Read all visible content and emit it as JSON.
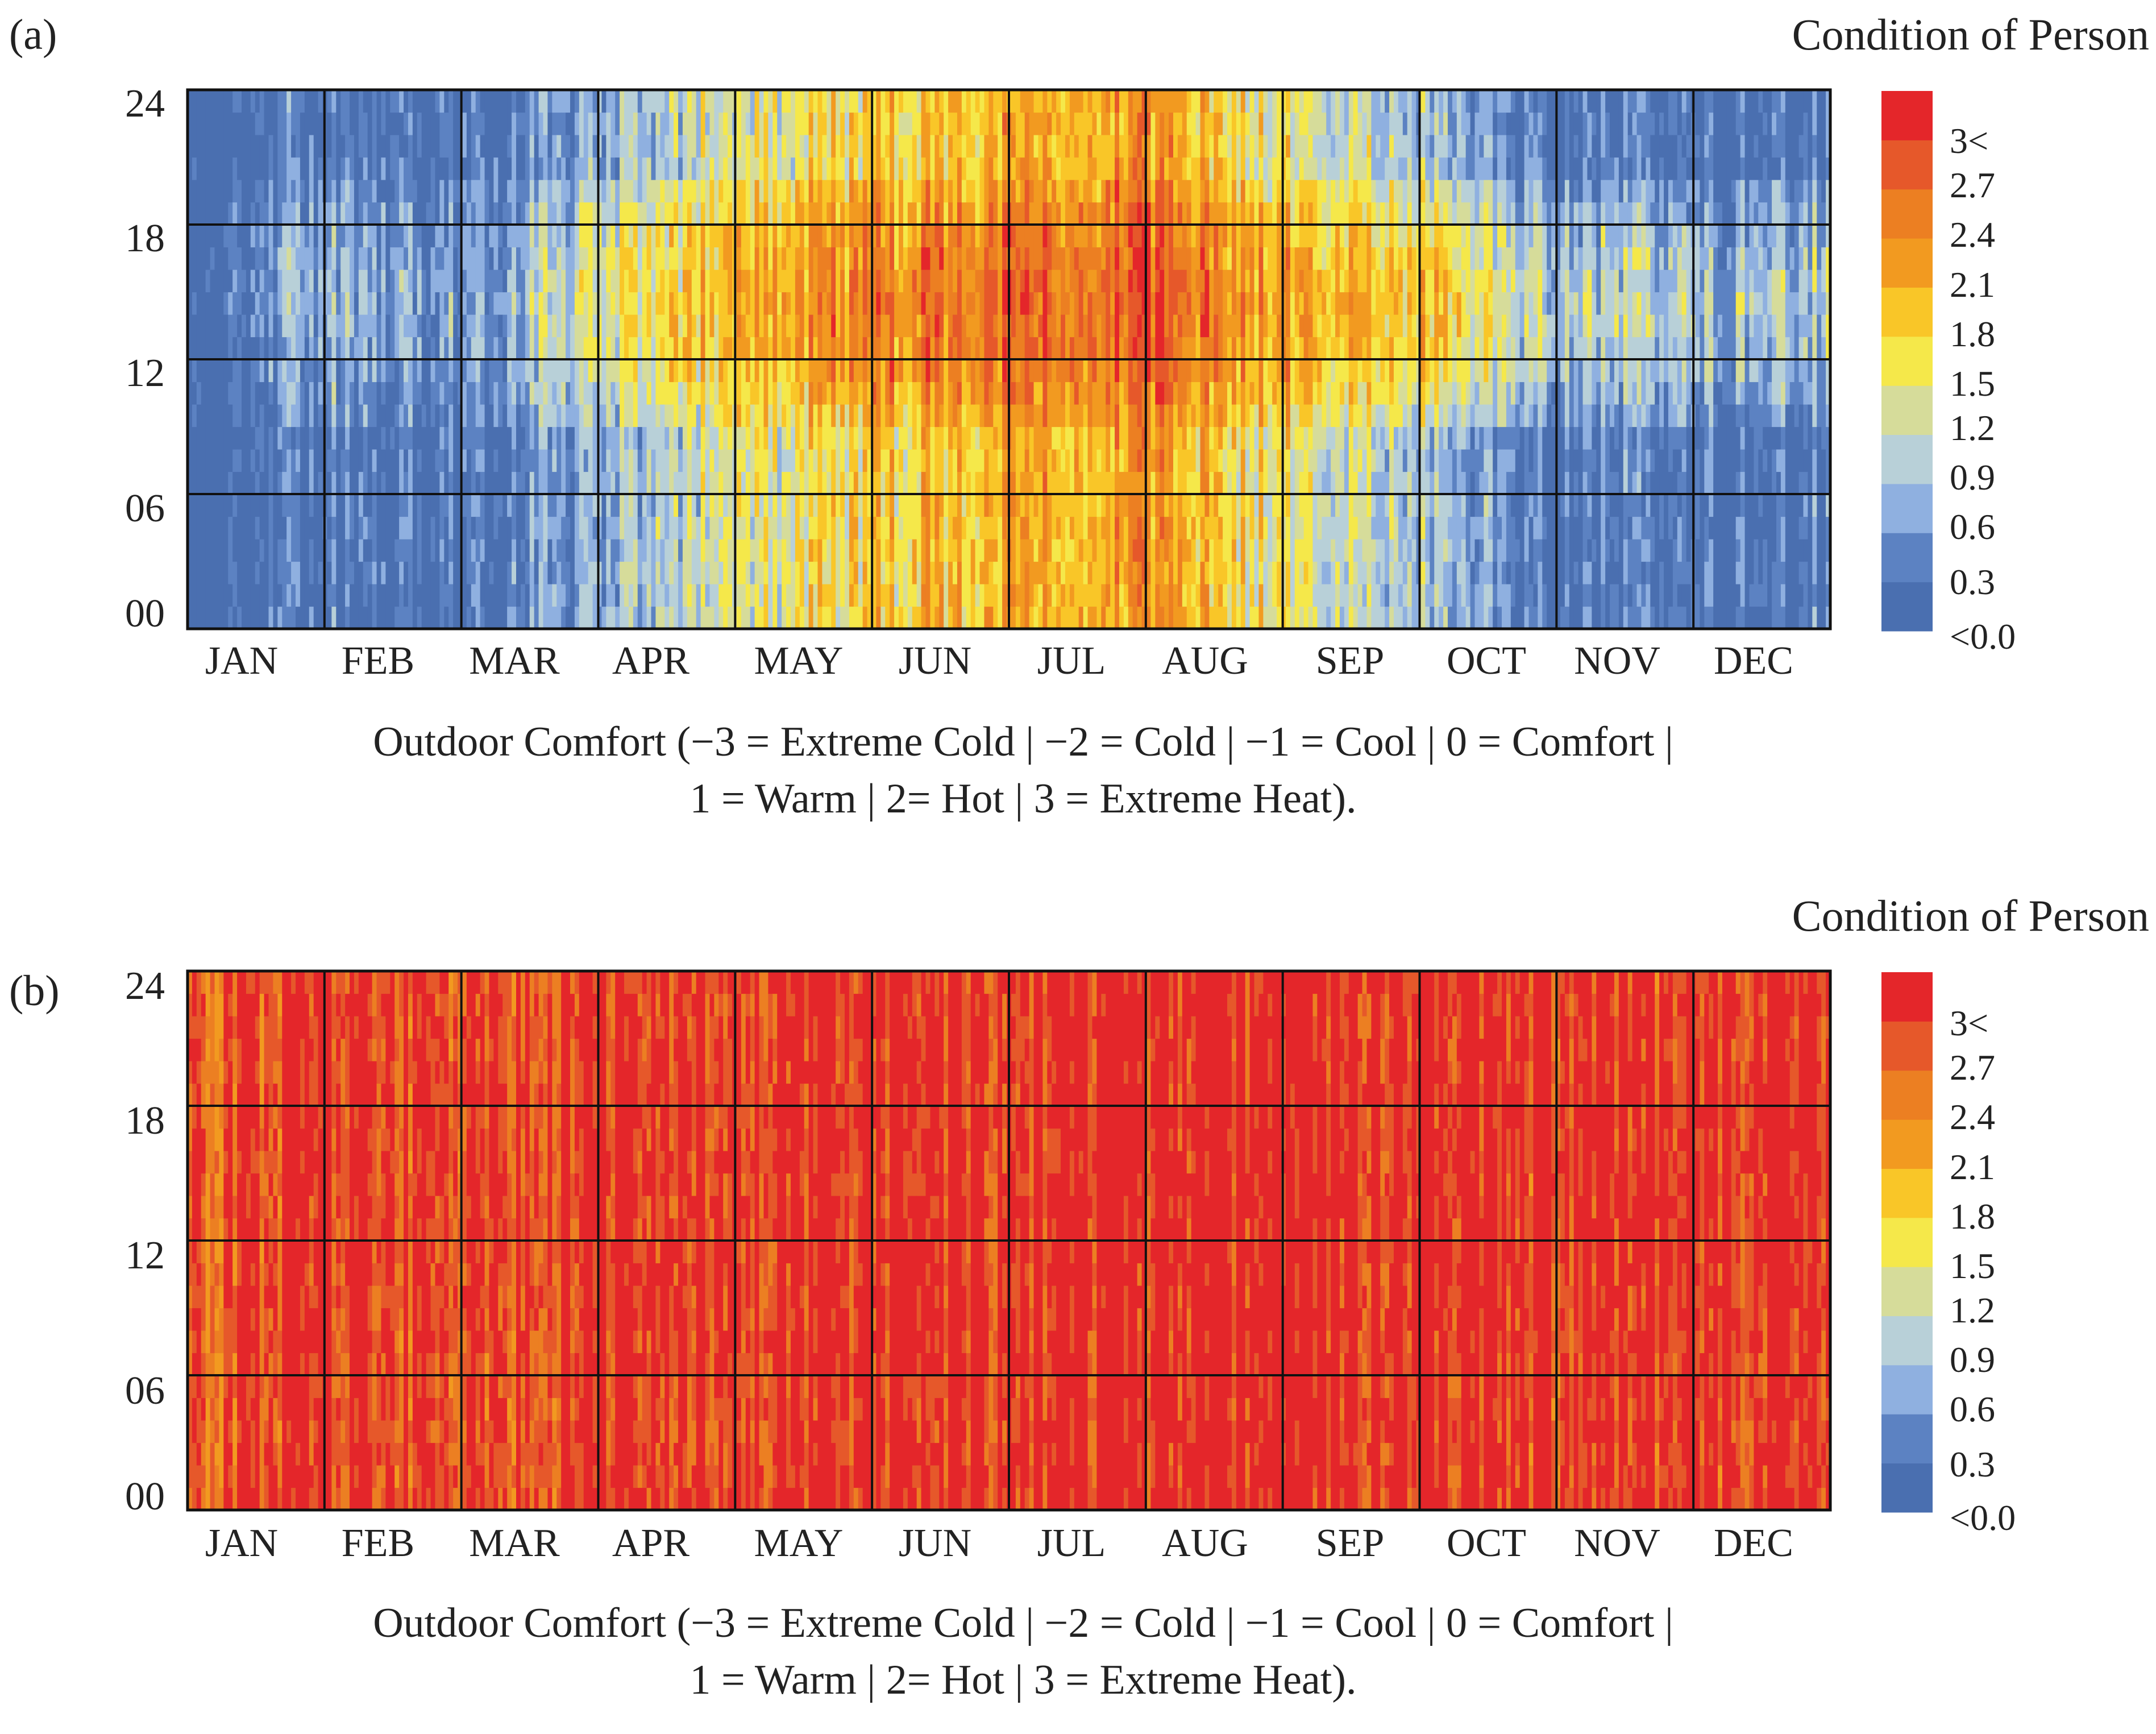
{
  "colors": {
    "palette": [
      "#4a6fb0",
      "#5c82c2",
      "#8fb0e0",
      "#b8d0d8",
      "#d6dc9a",
      "#f5e84a",
      "#f9c628",
      "#f29a20",
      "#ec7f22",
      "#e6582a",
      "#e4262a"
    ],
    "grid_line": "#111111"
  },
  "chart_data": [
    {
      "id": "a",
      "type": "heatmap",
      "panel_label": "(a)",
      "legend_title": "Condition of Person",
      "x_categories": [
        "JAN",
        "FEB",
        "MAR",
        "APR",
        "MAY",
        "JUN",
        "JUL",
        "AUG",
        "SEP",
        "OCT",
        "NOV",
        "DEC"
      ],
      "y_ticks": [
        "24",
        "18",
        "12",
        "06",
        "00"
      ],
      "ylim": [
        0,
        24
      ],
      "colorbar_ticks": [
        "3<",
        "2.7",
        "2.4",
        "2.1",
        "1.8",
        "1.5",
        "1.2",
        "0.9",
        "0.6",
        "0.3",
        "<0.0"
      ],
      "colorbar_range": [
        -0.15,
        3.15
      ],
      "caption_line1": "Outdoor Comfort (−3 = Extreme Cold | −2 = Cold | −1 = Cool | 0 = Comfort |",
      "caption_line2": "1 = Warm | 2= Hot | 3 = Extreme Heat).",
      "monthly_mean_comfort": {
        "night": [
          0.0,
          0.05,
          0.1,
          0.5,
          1.3,
          1.6,
          2.0,
          2.1,
          1.4,
          0.8,
          0.1,
          0.05
        ],
        "day": [
          0.1,
          0.6,
          0.4,
          1.2,
          2.0,
          2.3,
          2.6,
          2.6,
          2.1,
          1.8,
          0.9,
          0.8
        ]
      }
    },
    {
      "id": "b",
      "type": "heatmap",
      "panel_label": "(b)",
      "legend_title": "Condition of Person",
      "x_categories": [
        "JAN",
        "FEB",
        "MAR",
        "APR",
        "MAY",
        "JUN",
        "JUL",
        "AUG",
        "SEP",
        "OCT",
        "NOV",
        "DEC"
      ],
      "y_ticks": [
        "24",
        "18",
        "12",
        "06",
        "00"
      ],
      "ylim": [
        0,
        24
      ],
      "colorbar_ticks": [
        "3<",
        "2.7",
        "2.4",
        "2.1",
        "1.8",
        "1.5",
        "1.2",
        "0.9",
        "0.6",
        "0.3",
        "<0.0"
      ],
      "colorbar_range": [
        -0.15,
        3.15
      ],
      "caption_line1": "Outdoor Comfort (−3 = Extreme Cold | −2 = Cold | −1 = Cool | 0 = Comfort |",
      "caption_line2": "1 = Warm | 2= Hot | 3 = Extreme Heat).",
      "monthly_mean_comfort": {
        "night": [
          2.6,
          2.9,
          2.7,
          2.97,
          2.97,
          3.0,
          3.0,
          3.0,
          3.0,
          2.97,
          2.9,
          2.9
        ],
        "day": [
          2.6,
          2.92,
          2.75,
          3.0,
          3.0,
          2.98,
          3.0,
          3.0,
          3.0,
          3.0,
          2.97,
          3.0
        ]
      }
    }
  ]
}
